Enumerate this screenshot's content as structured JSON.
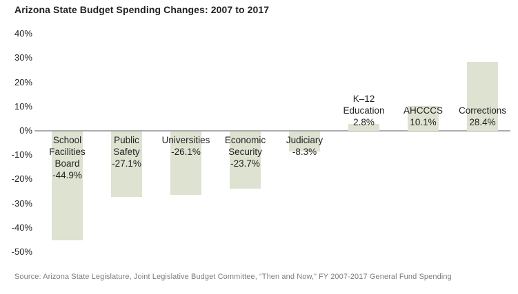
{
  "title": "Arizona State Budget Spending Changes: 2007 to 2017",
  "source_note": "Source: Arizona State Legislature, Joint Legislative Budget Committee, “Then and Now,” FY 2007-2017 General Fund Spending",
  "colors": {
    "bar_fill": "#dde2d1",
    "text": "#231f20",
    "axis_line": "#a9abad",
    "source_text": "#7b7d80",
    "background": "#ffffff"
  },
  "chart_data": {
    "type": "bar",
    "title": "Arizona State Budget Spending Changes: 2007 to 2017",
    "xlabel": "",
    "ylabel": "",
    "ylim": [
      -50,
      40
    ],
    "grid": false,
    "legend": "none",
    "axis_tick_format": "percent",
    "categories": [
      "School Facilities Board",
      "Public Safety",
      "Universities",
      "Economic Security",
      "Judiciary",
      "K–12 Education",
      "AHCCCS",
      "Corrections"
    ],
    "values": [
      -44.9,
      -27.1,
      -26.1,
      -23.7,
      -8.3,
      2.8,
      10.1,
      28.4
    ],
    "y_ticks": [
      {
        "value": 40,
        "label": "40%"
      },
      {
        "value": 30,
        "label": "30%"
      },
      {
        "value": 20,
        "label": "20%"
      },
      {
        "value": 10,
        "label": "10%"
      },
      {
        "value": 0,
        "label": "0%"
      },
      {
        "value": -10,
        "label": "-10%"
      },
      {
        "value": -20,
        "label": "-20%"
      },
      {
        "value": -30,
        "label": "-30%"
      },
      {
        "value": -40,
        "label": "-40%"
      },
      {
        "value": -50,
        "label": "-50%"
      }
    ],
    "bars": [
      {
        "category": "School Facilities Board",
        "name_lines": [
          "School",
          "Facilities",
          "Board"
        ],
        "value": -44.9,
        "value_label": "-44.9%"
      },
      {
        "category": "Public Safety",
        "name_lines": [
          "Public",
          "Safety"
        ],
        "value": -27.1,
        "value_label": "-27.1%"
      },
      {
        "category": "Universities",
        "name_lines": [
          "Universities"
        ],
        "value": -26.1,
        "value_label": "-26.1%"
      },
      {
        "category": "Economic Security",
        "name_lines": [
          "Economic",
          "Security"
        ],
        "value": -23.7,
        "value_label": "-23.7%"
      },
      {
        "category": "Judiciary",
        "name_lines": [
          "Judiciary"
        ],
        "value": -8.3,
        "value_label": "-8.3%"
      },
      {
        "category": "K–12 Education",
        "name_lines": [
          "K–12",
          "Education"
        ],
        "value": 2.8,
        "value_label": "2.8%"
      },
      {
        "category": "AHCCCS",
        "name_lines": [
          "AHCCCS"
        ],
        "value": 10.1,
        "value_label": "10.1%"
      },
      {
        "category": "Corrections",
        "name_lines": [
          "Corrections"
        ],
        "value": 28.4,
        "value_label": "28.4%"
      }
    ],
    "source": "Source: Arizona State Legislature, Joint Legislative Budget Committee, “Then and Now,” FY 2007-2017 General Fund Spending"
  }
}
